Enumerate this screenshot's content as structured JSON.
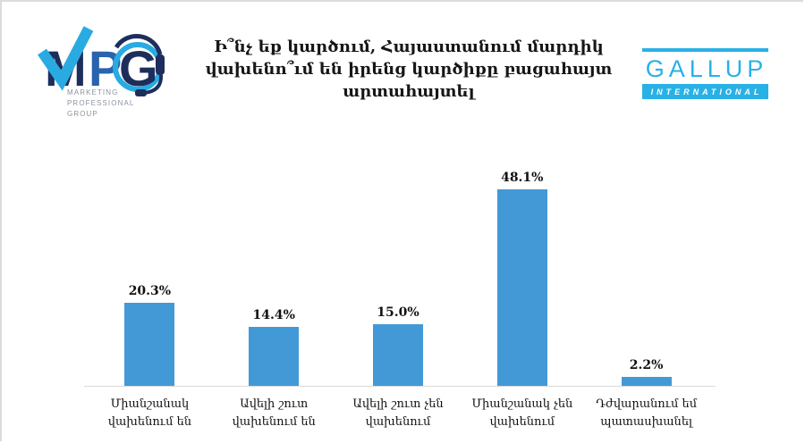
{
  "slide": {
    "title_lines": [
      "Ի՞նչ եք կարծում, Հայաստանում մարդիկ",
      "վախենո՞ւմ են իրենց կարծիքը բացահայտ",
      "արտահայտել"
    ]
  },
  "logos": {
    "mpg": {
      "letter_m": "M",
      "letter_p": "P",
      "letter_g": "G",
      "tagline_lines": [
        "MARKETING",
        "PROFESSIONAL",
        "GROUP"
      ],
      "navy": "#1e2e5c",
      "cyan": "#29abe2",
      "mid_blue": "#2a63ae",
      "tagline_gray": "#8d939d"
    },
    "gallup": {
      "name": "GALLUP",
      "subtitle": "INTERNATIONAL",
      "blue": "#29b1e6"
    }
  },
  "chart_data": {
    "type": "bar",
    "title": "Ի՞նչ եք կարծում, Հայաստանում մարդիկ վախենո՞ւմ են իրենց կարծիքը բացահայտ արտահայտել",
    "categories": [
      "Միանշանակ վախենում են",
      "Ավելի շուտ վախենում են",
      "Ավելի շուտ չեն վախենում",
      "Միանշանակ չեն վախենում",
      "Դժվարանում եմ պատասխանել"
    ],
    "values": [
      20.3,
      14.4,
      15.0,
      48.1,
      2.2
    ],
    "value_labels": [
      "20.3%",
      "14.4%",
      "15.0%",
      "48.1%",
      "2.2%"
    ],
    "xlabel": "",
    "ylabel": "",
    "ylim": [
      0,
      55
    ],
    "grid": false,
    "legend": false,
    "data_labels": "outside-end",
    "bar_color": "#4399d6",
    "axis_color": "#d9d9d9"
  }
}
